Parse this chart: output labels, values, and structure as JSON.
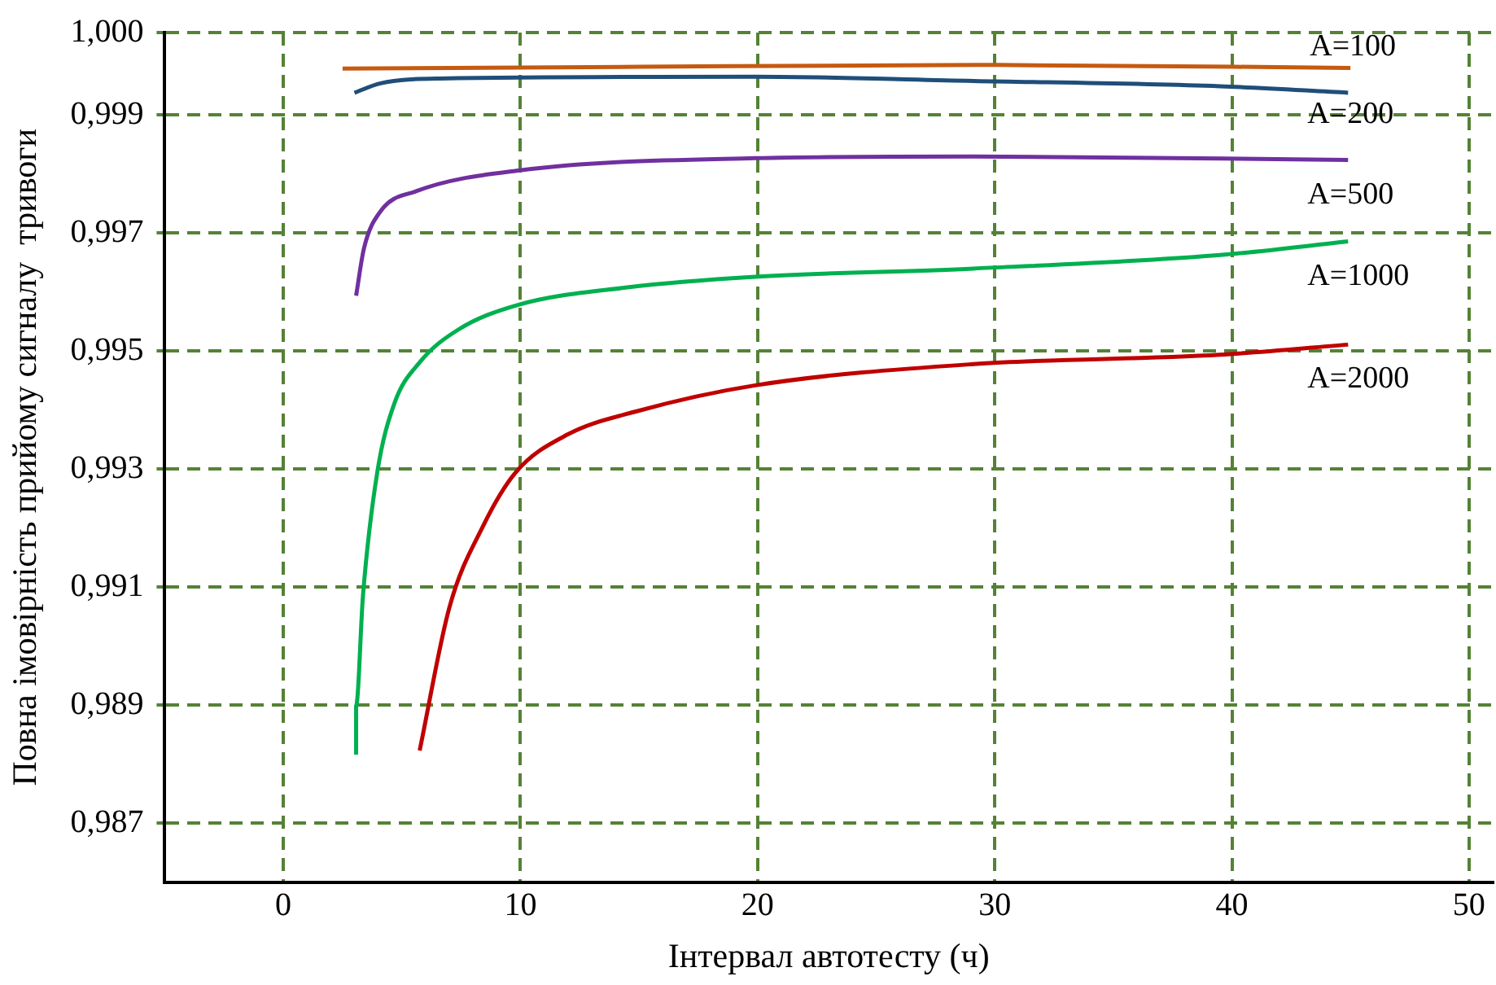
{
  "chart_data": {
    "type": "line",
    "xlabel": "Інтервал автотесту (ч)",
    "ylabel": "Повна імовірність прийому сигналу  тривоги",
    "xlim": [
      -5,
      51
    ],
    "xticks": [
      0,
      10,
      20,
      30,
      40,
      50
    ],
    "ylim": [
      0.9856,
      1.0
    ],
    "yticks": [
      {
        "value": 0.9866,
        "label": "0,987"
      },
      {
        "value": 0.9886,
        "label": "0,989"
      },
      {
        "value": 0.9906,
        "label": "0,991"
      },
      {
        "value": 0.9926,
        "label": "0,993"
      },
      {
        "value": 0.9946,
        "label": "0,995"
      },
      {
        "value": 0.9966,
        "label": "0,997"
      },
      {
        "value": 0.9986,
        "label": "0,999"
      },
      {
        "value": 1.0,
        "label": "1,000"
      }
    ],
    "grid": true,
    "legend": false,
    "marker": "none",
    "line_style": "solid",
    "series": [
      {
        "name": "A=100",
        "color": "#c55a11",
        "x": [
          2.5,
          15,
          30,
          45
        ],
        "values": [
          0.99939,
          0.99942,
          0.99945,
          0.9994
        ]
      },
      {
        "name": "A=200",
        "color": "#1f4e79",
        "x": [
          3.0,
          4.1,
          6.6,
          19.9,
          29.1,
          39.5,
          44.9
        ],
        "values": [
          0.99898,
          0.99914,
          0.99922,
          0.99925,
          0.99918,
          0.99909,
          0.99898
        ]
      },
      {
        "name": "A=500",
        "color": "#7030a0",
        "x": [
          3.07,
          3.4,
          4.1,
          5.6,
          9.9,
          19.9,
          29.1,
          44.9
        ],
        "values": [
          0.99554,
          0.99634,
          0.99697,
          0.99731,
          0.99766,
          0.99787,
          0.9979,
          0.99784
        ]
      },
      {
        "name": "A=1000",
        "color": "#00b050",
        "x": [
          3.07,
          3.07,
          3.36,
          3.96,
          4.68,
          5.75,
          7.36,
          9.86,
          14.5,
          19.9,
          29.1,
          39.5,
          44.9
        ],
        "values": [
          0.98776,
          0.98859,
          0.99046,
          0.99254,
          0.99371,
          0.99441,
          0.99496,
          0.99538,
          0.99568,
          0.99586,
          0.996,
          0.99623,
          0.99646
        ]
      },
      {
        "name": "A=2000",
        "color": "#c00000",
        "x": [
          5.75,
          7.0,
          8.43,
          9.79,
          12.0,
          14.9,
          19.9,
          29.1,
          39.5,
          44.9
        ],
        "values": [
          0.98783,
          0.99025,
          0.99164,
          0.99254,
          0.99319,
          0.99358,
          0.99402,
          0.99438,
          0.99454,
          0.99471
        ]
      }
    ]
  }
}
